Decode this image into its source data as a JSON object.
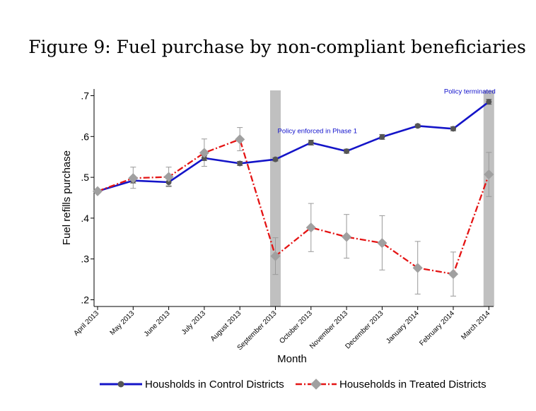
{
  "chart_data": {
    "type": "line",
    "title": "Figure 9: Fuel purchase by non-compliant beneficiaries",
    "xlabel": "Month",
    "ylabel": "Fuel refills purchase",
    "categories": [
      "April 2013",
      "May 2013",
      "June 2013",
      "July 2013",
      "August 2013",
      "September 2013",
      "October 2013",
      "November 2013",
      "December 2013",
      "January 2014",
      "February 2014",
      "March 2014"
    ],
    "yticks": [
      ".2",
      ".3",
      ".4",
      ".5",
      ".6",
      ".7"
    ],
    "ylim": [
      0.185,
      0.715
    ],
    "series": [
      {
        "name": "Housholds in Control Districts",
        "color": "#1414c8",
        "marker": "circle",
        "values": [
          0.466,
          0.492,
          0.488,
          0.547,
          0.534,
          0.544,
          0.585,
          0.564,
          0.599,
          0.626,
          0.619,
          0.685
        ],
        "ci_low": [
          0.462,
          0.486,
          0.479,
          0.541,
          0.529,
          0.54,
          0.579,
          0.559,
          0.593,
          0.622,
          0.614,
          0.679
        ],
        "ci_high": [
          0.47,
          0.498,
          0.496,
          0.553,
          0.539,
          0.548,
          0.591,
          0.569,
          0.605,
          0.63,
          0.624,
          0.691
        ]
      },
      {
        "name": "Households in Treated Districts",
        "color": "#e41414",
        "marker": "diamond",
        "values": [
          0.466,
          0.498,
          0.501,
          0.56,
          0.593,
          0.307,
          0.377,
          0.354,
          0.339,
          0.278,
          0.263,
          0.507
        ],
        "ci_low": [
          0.461,
          0.473,
          0.477,
          0.527,
          0.565,
          0.262,
          0.318,
          0.302,
          0.273,
          0.214,
          0.209,
          0.453
        ],
        "ci_high": [
          0.471,
          0.525,
          0.525,
          0.594,
          0.622,
          0.352,
          0.436,
          0.409,
          0.406,
          0.343,
          0.317,
          0.561
        ]
      }
    ],
    "shaded_bands": [
      5,
      11
    ],
    "annotations": [
      {
        "text": "Policy enforced in Phase 1",
        "at_category": 5,
        "y": 0.608,
        "color": "#1010cc"
      },
      {
        "text": "Policy terminated",
        "at_category": 11,
        "y": 0.705,
        "color": "#1010cc"
      }
    ],
    "legend_position": "bottom",
    "grid": false
  }
}
